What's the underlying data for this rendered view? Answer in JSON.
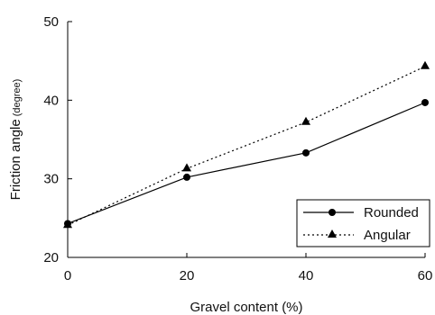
{
  "chart_data": {
    "type": "line",
    "title": "",
    "xlabel": "Gravel content (%)",
    "ylabel": "Friction angle",
    "ylabel_unit": "(degree)",
    "x": [
      0,
      20,
      40,
      60
    ],
    "xlim": [
      0,
      60
    ],
    "ylim": [
      20,
      50
    ],
    "xticks": [
      "0",
      "20",
      "40",
      "60"
    ],
    "yticks": [
      "20",
      "30",
      "40",
      "50"
    ],
    "grid": false,
    "legend_position": "bottom-right",
    "series": [
      {
        "name": "Rounded",
        "values": [
          24.3,
          30.2,
          33.3,
          39.7
        ],
        "marker": "circle",
        "line": "solid",
        "color": "#000000"
      },
      {
        "name": "Angular",
        "values": [
          24.1,
          31.3,
          37.2,
          44.3
        ],
        "marker": "triangle",
        "line": "dotted",
        "color": "#000000"
      }
    ]
  }
}
